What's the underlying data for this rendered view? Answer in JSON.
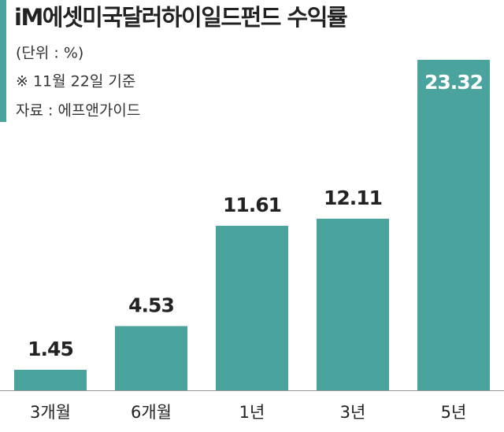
{
  "chart_data": {
    "type": "bar",
    "title": "iM에셋미국달러하이일드펀드 수익률",
    "subtitle": "(단위 : %)",
    "note": "※ 11월 22일 기준",
    "source": "자료 : 에프앤가이드",
    "categories": [
      "3개월",
      "6개월",
      "1년",
      "3년",
      "5년"
    ],
    "values": [
      1.45,
      4.53,
      11.61,
      12.11,
      23.32
    ],
    "color": "#4ba39e"
  }
}
